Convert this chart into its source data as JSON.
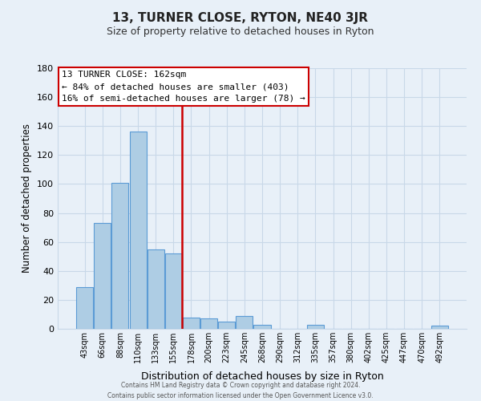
{
  "title": "13, TURNER CLOSE, RYTON, NE40 3JR",
  "subtitle": "Size of property relative to detached houses in Ryton",
  "xlabel": "Distribution of detached houses by size in Ryton",
  "ylabel": "Number of detached properties",
  "bar_labels": [
    "43sqm",
    "66sqm",
    "88sqm",
    "110sqm",
    "133sqm",
    "155sqm",
    "178sqm",
    "200sqm",
    "223sqm",
    "245sqm",
    "268sqm",
    "290sqm",
    "312sqm",
    "335sqm",
    "357sqm",
    "380sqm",
    "402sqm",
    "425sqm",
    "447sqm",
    "470sqm",
    "492sqm"
  ],
  "bar_values": [
    29,
    73,
    101,
    136,
    55,
    52,
    8,
    7,
    5,
    9,
    3,
    0,
    0,
    3,
    0,
    0,
    0,
    0,
    0,
    0,
    2
  ],
  "bar_color": "#aecde4",
  "bar_edge_color": "#5b9bd5",
  "vline_x": 5.5,
  "vline_color": "#cc0000",
  "ylim": [
    0,
    180
  ],
  "yticks": [
    0,
    20,
    40,
    60,
    80,
    100,
    120,
    140,
    160,
    180
  ],
  "annotation_line1": "13 TURNER CLOSE: 162sqm",
  "annotation_line2": "← 84% of detached houses are smaller (403)",
  "annotation_line3": "16% of semi-detached houses are larger (78) →",
  "footer_line1": "Contains HM Land Registry data © Crown copyright and database right 2024.",
  "footer_line2": "Contains public sector information licensed under the Open Government Licence v3.0.",
  "background_color": "#e8f0f8",
  "grid_color": "#c8d8e8",
  "annotation_bg": "#ffffff",
  "annotation_border": "#cc0000"
}
